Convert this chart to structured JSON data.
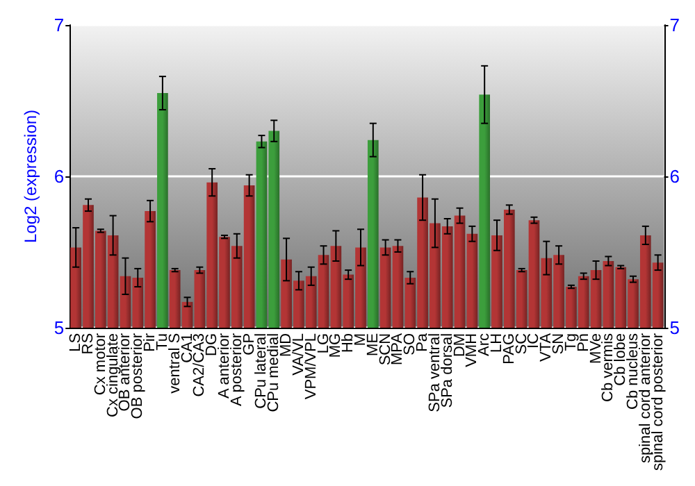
{
  "chart_data": {
    "type": "bar",
    "ylabel": "Log2 (expression)",
    "categories": [
      "LS",
      "RS",
      "Cx motor",
      "Cx cingulate",
      "OB anterior",
      "OB posterior",
      "Pir",
      "Tu",
      "ventral S",
      "CA1",
      "CA2/CA3",
      "DG",
      "A anterior",
      "A posterior",
      "GP",
      "CPu lateral",
      "CPu medial",
      "MD",
      "VA/VL",
      "VPM/VPL",
      "LG",
      "MG",
      "Hb",
      "M",
      "ME",
      "SCN",
      "MPA",
      "SO",
      "Pa",
      "SPa ventral",
      "SPa dorsal",
      "DM",
      "VMH",
      "Arc",
      "LH",
      "PAG",
      "SC",
      "IC",
      "VTA",
      "SN",
      "Tg",
      "Pn",
      "MVe",
      "Cb vermis",
      "Cb lobe",
      "Cb nucleus",
      "spinal cord anterior",
      "spinal cord posterior"
    ],
    "values": [
      5.53,
      5.81,
      5.64,
      5.61,
      5.34,
      5.33,
      5.77,
      6.55,
      5.38,
      5.17,
      5.38,
      5.96,
      5.6,
      5.54,
      5.94,
      6.23,
      6.3,
      5.45,
      5.31,
      5.34,
      5.48,
      5.54,
      5.35,
      5.53,
      6.24,
      5.53,
      5.54,
      5.33,
      5.86,
      5.69,
      5.67,
      5.74,
      5.62,
      6.54,
      5.61,
      5.78,
      5.38,
      5.71,
      5.46,
      5.48,
      5.27,
      5.34,
      5.38,
      5.44,
      5.4,
      5.32,
      5.61,
      5.43
    ],
    "errors": [
      0.13,
      0.04,
      0.01,
      0.13,
      0.12,
      0.06,
      0.07,
      0.11,
      0.01,
      0.03,
      0.02,
      0.09,
      0.01,
      0.08,
      0.07,
      0.04,
      0.07,
      0.14,
      0.06,
      0.06,
      0.06,
      0.1,
      0.03,
      0.12,
      0.11,
      0.05,
      0.04,
      0.04,
      0.15,
      0.16,
      0.05,
      0.05,
      0.05,
      0.19,
      0.1,
      0.03,
      0.01,
      0.02,
      0.11,
      0.06,
      0.01,
      0.02,
      0.06,
      0.03,
      0.01,
      0.02,
      0.06,
      0.05
    ],
    "colors": [
      "#b33535",
      "#b33535",
      "#b33535",
      "#b33535",
      "#b33535",
      "#b33535",
      "#b33535",
      "#3c9e3c",
      "#b33535",
      "#b33535",
      "#b33535",
      "#b33535",
      "#b33535",
      "#b33535",
      "#b33535",
      "#3c9e3c",
      "#3c9e3c",
      "#b33535",
      "#b33535",
      "#b33535",
      "#b33535",
      "#b33535",
      "#b33535",
      "#b33535",
      "#3c9e3c",
      "#b33535",
      "#b33535",
      "#b33535",
      "#b33535",
      "#b33535",
      "#b33535",
      "#b33535",
      "#b33535",
      "#3c9e3c",
      "#b33535",
      "#b33535",
      "#b33535",
      "#b33535",
      "#b33535",
      "#b33535",
      "#b33535",
      "#b33535",
      "#b33535",
      "#b33535",
      "#b33535",
      "#b33535",
      "#b33535",
      "#b33535"
    ],
    "ylim": [
      5,
      7
    ],
    "yticks": [
      5,
      6,
      7
    ],
    "y2lim": [
      5,
      7
    ],
    "y2ticks": [
      5,
      6,
      7
    ],
    "grid": "y"
  }
}
